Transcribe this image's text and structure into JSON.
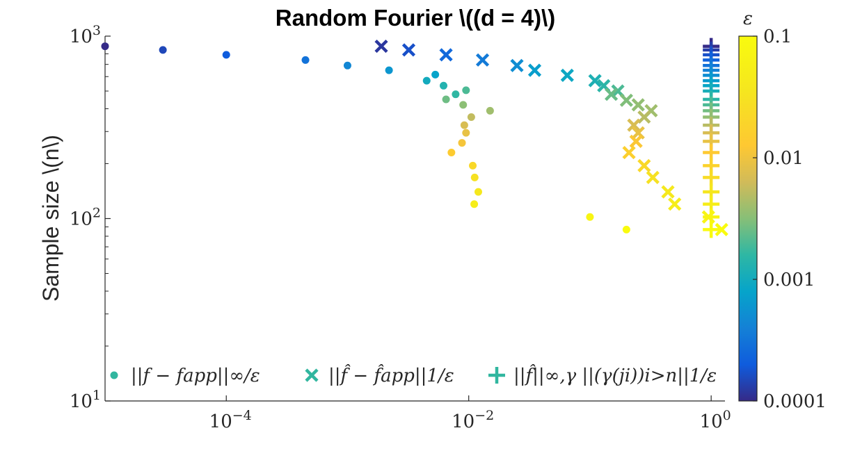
{
  "chart_data": {
    "type": "scatter",
    "title": "Random Fourier \\((d = 4)\\)",
    "xlabel": "",
    "ylabel": "Sample size \\(n\\)",
    "xscale": "log",
    "yscale": "log",
    "xlim": [
      1e-05,
      1.3
    ],
    "ylim": [
      10,
      1000
    ],
    "x_ticks": [
      {
        "value": 0.0001,
        "base": "10",
        "exp": "−4"
      },
      {
        "value": 0.01,
        "base": "10",
        "exp": "−2"
      },
      {
        "value": 1,
        "base": "10",
        "exp": "0"
      }
    ],
    "y_ticks": [
      {
        "value": 10,
        "base": "10",
        "exp": "1"
      },
      {
        "value": 100,
        "base": "10",
        "exp": "2"
      },
      {
        "value": 1000,
        "base": "10",
        "exp": "3"
      }
    ],
    "colorbar": {
      "label": "ε",
      "scale": "log",
      "range": [
        0.0001,
        0.1
      ],
      "colormap": "parula",
      "ticks": [
        {
          "value": 0.1,
          "label": "0.1"
        },
        {
          "value": 0.01,
          "label": "0.01"
        },
        {
          "value": 0.001,
          "label": "0.001"
        },
        {
          "value": 0.0001,
          "label": "0.0001"
        }
      ]
    },
    "legend_location": "bottom",
    "series": [
      {
        "name": "||f − fapp||∞/ε",
        "marker": "dot",
        "legend_color": "#31b69f",
        "points": [
          {
            "x": 1e-05,
            "y": 880,
            "eps": 0.0001
          },
          {
            "x": 3e-05,
            "y": 840,
            "eps": 0.00015
          },
          {
            "x": 0.0001,
            "y": 790,
            "eps": 0.0002
          },
          {
            "x": 0.00045,
            "y": 740,
            "eps": 0.0003
          },
          {
            "x": 0.001,
            "y": 690,
            "eps": 0.00045
          },
          {
            "x": 0.0022,
            "y": 650,
            "eps": 0.0006
          },
          {
            "x": 0.0053,
            "y": 615,
            "eps": 0.0008
          },
          {
            "x": 0.0045,
            "y": 570,
            "eps": 0.001
          },
          {
            "x": 0.0062,
            "y": 535,
            "eps": 0.0013
          },
          {
            "x": 0.0078,
            "y": 480,
            "eps": 0.0016
          },
          {
            "x": 0.0095,
            "y": 505,
            "eps": 0.002
          },
          {
            "x": 0.0065,
            "y": 450,
            "eps": 0.0026
          },
          {
            "x": 0.009,
            "y": 420,
            "eps": 0.0033
          },
          {
            "x": 0.015,
            "y": 390,
            "eps": 0.004
          },
          {
            "x": 0.0105,
            "y": 360,
            "eps": 0.0055
          },
          {
            "x": 0.0092,
            "y": 325,
            "eps": 0.007
          },
          {
            "x": 0.0095,
            "y": 295,
            "eps": 0.009
          },
          {
            "x": 0.0088,
            "y": 260,
            "eps": 0.011
          },
          {
            "x": 0.0072,
            "y": 230,
            "eps": 0.014
          },
          {
            "x": 0.0108,
            "y": 195,
            "eps": 0.022
          },
          {
            "x": 0.0112,
            "y": 168,
            "eps": 0.03
          },
          {
            "x": 0.012,
            "y": 140,
            "eps": 0.04
          },
          {
            "x": 0.0111,
            "y": 120,
            "eps": 0.05
          },
          {
            "x": 0.1,
            "y": 102,
            "eps": 0.075
          },
          {
            "x": 0.2,
            "y": 87,
            "eps": 0.1
          }
        ]
      },
      {
        "name": "||f̂ − f̂app||1/ε",
        "marker": "x",
        "legend_color": "#31b69f",
        "points": [
          {
            "x": 0.0019,
            "y": 880,
            "eps": 0.00012
          },
          {
            "x": 0.0032,
            "y": 840,
            "eps": 0.00017
          },
          {
            "x": 0.0065,
            "y": 790,
            "eps": 0.00025
          },
          {
            "x": 0.013,
            "y": 740,
            "eps": 0.00035
          },
          {
            "x": 0.025,
            "y": 690,
            "eps": 0.0005
          },
          {
            "x": 0.035,
            "y": 650,
            "eps": 0.0007
          },
          {
            "x": 0.065,
            "y": 610,
            "eps": 0.0009
          },
          {
            "x": 0.11,
            "y": 570,
            "eps": 0.0012
          },
          {
            "x": 0.13,
            "y": 535,
            "eps": 0.0015
          },
          {
            "x": 0.17,
            "y": 500,
            "eps": 0.002
          },
          {
            "x": 0.15,
            "y": 480,
            "eps": 0.0025
          },
          {
            "x": 0.2,
            "y": 445,
            "eps": 0.003
          },
          {
            "x": 0.25,
            "y": 420,
            "eps": 0.0035
          },
          {
            "x": 0.32,
            "y": 390,
            "eps": 0.004
          },
          {
            "x": 0.28,
            "y": 360,
            "eps": 0.005
          },
          {
            "x": 0.23,
            "y": 325,
            "eps": 0.007
          },
          {
            "x": 0.25,
            "y": 295,
            "eps": 0.009
          },
          {
            "x": 0.24,
            "y": 265,
            "eps": 0.012
          },
          {
            "x": 0.21,
            "y": 230,
            "eps": 0.016
          },
          {
            "x": 0.28,
            "y": 195,
            "eps": 0.022
          },
          {
            "x": 0.33,
            "y": 168,
            "eps": 0.03
          },
          {
            "x": 0.44,
            "y": 140,
            "eps": 0.04
          },
          {
            "x": 0.5,
            "y": 120,
            "eps": 0.05
          },
          {
            "x": 0.95,
            "y": 102,
            "eps": 0.075
          },
          {
            "x": 1.22,
            "y": 87,
            "eps": 0.1
          }
        ]
      },
      {
        "name": "||f̂||∞,γ ||(γ(ji))i>n||1/ε",
        "marker": "plus",
        "legend_color": "#31b69f",
        "points": [
          {
            "x": 1,
            "y": 880,
            "eps": 0.0001
          },
          {
            "x": 1,
            "y": 840,
            "eps": 0.00013
          },
          {
            "x": 1,
            "y": 790,
            "eps": 0.00017
          },
          {
            "x": 1,
            "y": 740,
            "eps": 0.00022
          },
          {
            "x": 1,
            "y": 690,
            "eps": 0.0003
          },
          {
            "x": 1,
            "y": 650,
            "eps": 0.0004
          },
          {
            "x": 1,
            "y": 610,
            "eps": 0.0005
          },
          {
            "x": 1,
            "y": 570,
            "eps": 0.00065
          },
          {
            "x": 1,
            "y": 535,
            "eps": 0.00085
          },
          {
            "x": 1,
            "y": 500,
            "eps": 0.0011
          },
          {
            "x": 1,
            "y": 450,
            "eps": 0.0015
          },
          {
            "x": 1,
            "y": 420,
            "eps": 0.002
          },
          {
            "x": 1,
            "y": 390,
            "eps": 0.0027
          },
          {
            "x": 1,
            "y": 360,
            "eps": 0.0035
          },
          {
            "x": 1,
            "y": 325,
            "eps": 0.005
          },
          {
            "x": 1,
            "y": 295,
            "eps": 0.007
          },
          {
            "x": 1,
            "y": 265,
            "eps": 0.009
          },
          {
            "x": 1,
            "y": 230,
            "eps": 0.013
          },
          {
            "x": 1,
            "y": 195,
            "eps": 0.018
          },
          {
            "x": 1,
            "y": 168,
            "eps": 0.025
          },
          {
            "x": 1,
            "y": 140,
            "eps": 0.035
          },
          {
            "x": 1,
            "y": 120,
            "eps": 0.05
          },
          {
            "x": 1,
            "y": 102,
            "eps": 0.07
          },
          {
            "x": 1,
            "y": 87,
            "eps": 0.1
          }
        ]
      }
    ]
  }
}
